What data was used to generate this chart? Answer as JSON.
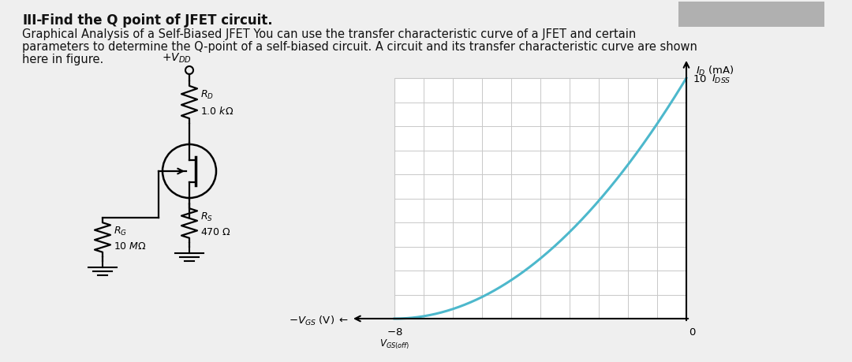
{
  "title_bold": "III-",
  "title_rest": "Find the Q point of JFET circuit.",
  "body_line1": "Graphical Analysis of a Self-Biased JFET You can use the transfer characteristic curve of a JFET and certain",
  "body_line2": "parameters to determine the Q-point of a self-biased circuit. A circuit and its transfer characteristic curve are shown",
  "body_line3": "here in figure.",
  "graph": {
    "curve_color": "#4db8cc",
    "grid_color": "#c8c8c8",
    "vgs_off": -8.0,
    "idss": 10.0,
    "x_range": [
      -8,
      0
    ],
    "y_range": [
      0,
      10
    ],
    "grid_nx": 10,
    "grid_ny": 10
  },
  "bg_color": "#efefef",
  "text_color": "#111111",
  "font_size_title": 12,
  "font_size_body": 10.5
}
